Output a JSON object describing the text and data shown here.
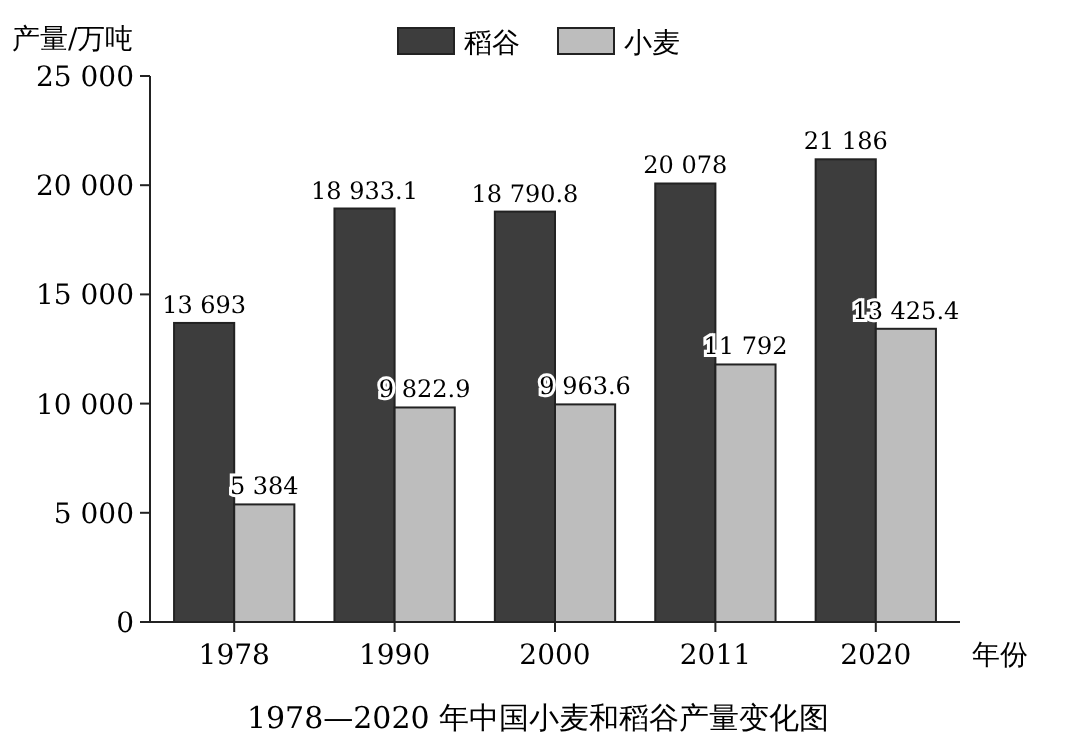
{
  "chart_data": {
    "type": "bar",
    "title": "1978—2020 年中国小麦和稻谷产量变化图",
    "xlabel": "年份",
    "ylabel": "产量/万吨",
    "categories": [
      "1978",
      "1990",
      "2000",
      "2011",
      "2020"
    ],
    "series": [
      {
        "name": "稻谷",
        "color": "#3d3d3d",
        "values": [
          13693,
          18933.1,
          18790.8,
          20078,
          21186
        ],
        "value_labels": [
          "13 693",
          "18 933.1",
          "18 790.8",
          "20 078",
          "21 186"
        ]
      },
      {
        "name": "小麦",
        "color": "#bdbdbd",
        "values": [
          5384,
          9822.9,
          9963.6,
          11792,
          13425.4
        ],
        "value_labels": [
          "5 384",
          "9 822.9",
          "9 963.6",
          "11 792",
          "13 425.4"
        ]
      }
    ],
    "ylim": [
      0,
      25000
    ],
    "yticks": [
      0,
      {
        "value": 5000,
        "label": "5 000"
      },
      {
        "value": 10000,
        "label": "10 000"
      },
      {
        "value": 15000,
        "label": "15 000"
      },
      {
        "value": 20000,
        "label": "20 000"
      },
      {
        "value": 25000,
        "label": "25 000"
      }
    ],
    "legend": "top",
    "grid": false
  }
}
